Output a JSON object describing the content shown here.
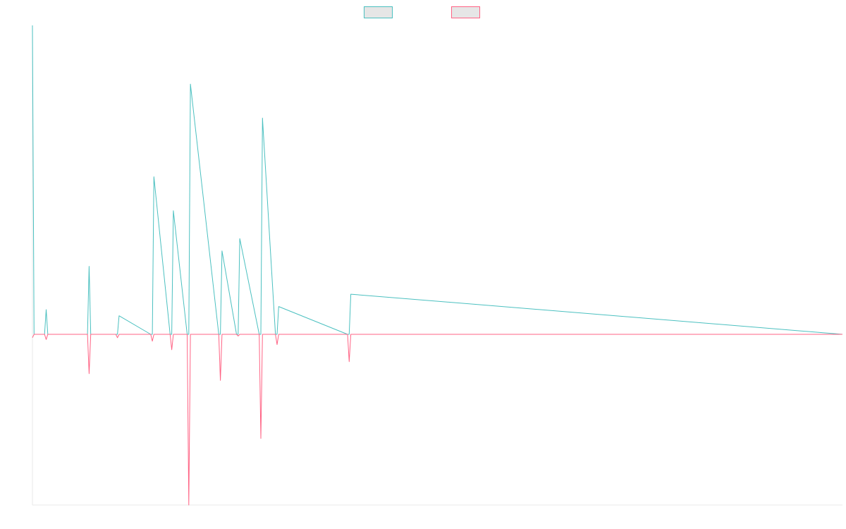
{
  "chart_data": {
    "type": "line",
    "title": "",
    "xlabel": "",
    "ylabel": "",
    "legend_position": "top-center",
    "grid": false,
    "xlim": [
      0,
      100
    ],
    "ylim": [
      -100,
      100
    ],
    "series": [
      {
        "name": "",
        "color": "#4bc0c0",
        "fill": "#e6e6e6",
        "x": [
          0,
          0.2,
          0.5,
          1.5,
          1.7,
          1.9,
          3.8,
          6.8,
          7.0,
          7.2,
          10.3,
          10.5,
          10.7,
          14.6,
          14.8,
          15.0,
          17.0,
          17.2,
          17.4,
          19.1,
          19.3,
          19.5,
          23.0,
          23.2,
          23.4,
          25.2,
          25.4,
          25.6,
          28.0,
          28.2,
          28.4,
          30.0,
          30.2,
          30.4,
          38.9,
          39.1,
          39.3,
          100
        ],
        "values": [
          100,
          0,
          0,
          0,
          8,
          0,
          0,
          0,
          22,
          0,
          0,
          0,
          6,
          0,
          0,
          51,
          0,
          0,
          40,
          0,
          0,
          81,
          0,
          0,
          27,
          0,
          0,
          31,
          0,
          0,
          70,
          0,
          0,
          9,
          0,
          0,
          13,
          0
        ]
      },
      {
        "name": "",
        "color": "#ff6384",
        "fill": "#e6e6e6",
        "x": [
          0,
          0.2,
          0.5,
          1.5,
          1.7,
          1.9,
          6.8,
          7.0,
          7.2,
          10.3,
          10.5,
          10.7,
          14.6,
          14.8,
          15.0,
          17.0,
          17.2,
          17.4,
          19.1,
          19.3,
          19.5,
          23.0,
          23.2,
          23.4,
          25.2,
          25.4,
          25.6,
          28.0,
          28.2,
          28.4,
          30.0,
          30.2,
          30.4,
          38.9,
          39.1,
          39.3,
          100
        ],
        "values": [
          -2,
          0,
          0,
          0,
          -3,
          0,
          0,
          -23,
          0,
          0,
          -2,
          0,
          0,
          -4,
          0,
          0,
          -9,
          0,
          0,
          -100,
          0,
          0,
          -27,
          0,
          0,
          -1,
          0,
          0,
          -61,
          0,
          0,
          -6,
          0,
          0,
          -16,
          0,
          0
        ]
      }
    ]
  }
}
